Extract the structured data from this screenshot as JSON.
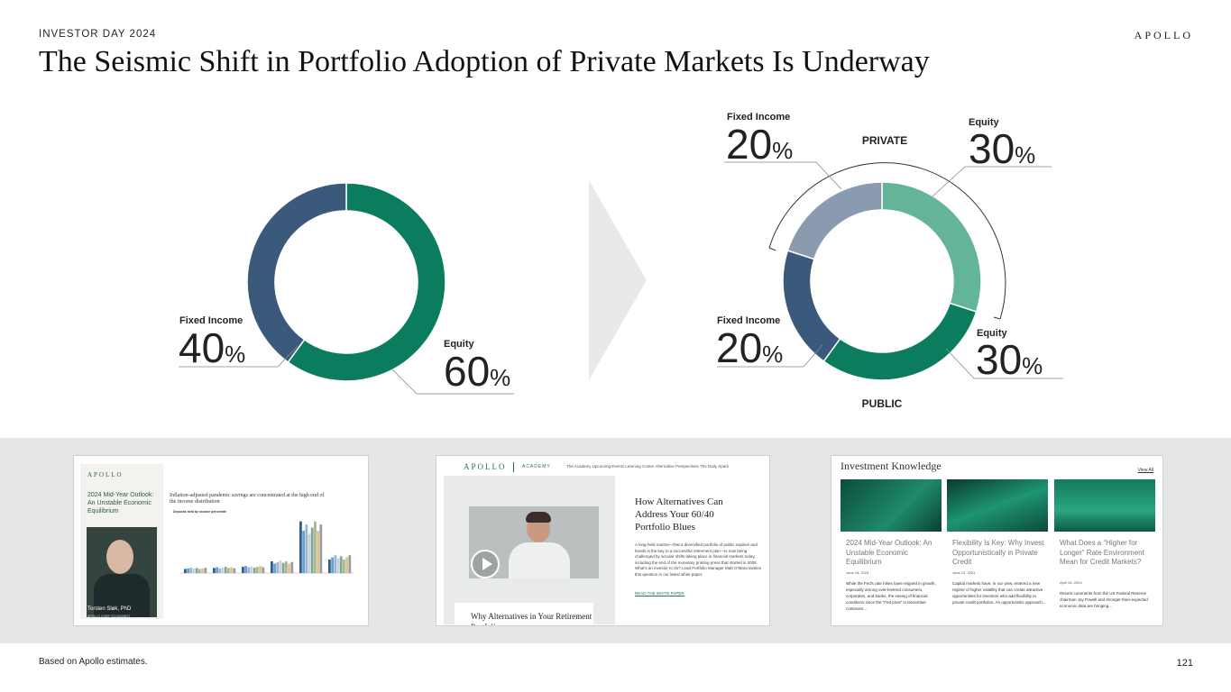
{
  "header": {
    "kicker": "INVESTOR DAY 2024",
    "brand": "APOLLO",
    "title": "The Seismic Shift in Portfolio Adoption of Private Markets Is Underway"
  },
  "colors": {
    "dark_green": "#0b7d5e",
    "navy": "#3b5a7b",
    "light_green": "#64b49a",
    "gray_blue": "#8a9bb0",
    "arrow": "#e9e9e9"
  },
  "chart_data": [
    {
      "type": "pie",
      "donut": true,
      "categories": [
        "Equity",
        "Fixed Income"
      ],
      "values": [
        60,
        40
      ],
      "unit": "%",
      "title": "",
      "labels": [
        {
          "name": "Equity",
          "value": "60",
          "unit": "%"
        },
        {
          "name": "Fixed Income",
          "value": "40",
          "unit": "%"
        }
      ]
    },
    {
      "type": "pie",
      "donut": true,
      "categories": [
        "Private Equity",
        "Public Equity",
        "Public Fixed Income",
        "Private Fixed Income"
      ],
      "values": [
        30,
        30,
        20,
        20
      ],
      "unit": "%",
      "title": "",
      "group_labels": {
        "top": "PRIVATE",
        "bottom": "PUBLIC"
      },
      "labels": [
        {
          "name": "Equity",
          "value": "30",
          "unit": "%"
        },
        {
          "name": "Equity",
          "value": "30",
          "unit": "%"
        },
        {
          "name": "Fixed Income",
          "value": "20",
          "unit": "%"
        },
        {
          "name": "Fixed Income",
          "value": "20",
          "unit": "%"
        }
      ]
    }
  ],
  "thumbnails": {
    "one": {
      "logo": "APOLLO",
      "title": "2024 Mid-Year Outlook: An Unstable Economic Equilibrium",
      "name": "Torsten Sløk, PhD",
      "subtitle": "APOLLO CHIEF ECONOMIST",
      "chart_title": "Inflation-adjusted pandemic savings are concentrated at the high end of the income distribution",
      "chart_subtitle": "Deposits held by income percentile"
    },
    "two": {
      "logo": "APOLLO",
      "academy": "ACADEMY",
      "nav": "The Academy   Upcoming Events   Learning Center   Alternative Perspectives   The Daily Spark",
      "video_caption": "Why Alternatives in Your Retirement Portfolio",
      "headline": "How Alternatives Can Address Your 60/40 Portfolio Blues",
      "body": "A long-held mantra—that a diversified portfolio of public equities and bonds is the key to a successful retirement plan—is now being challenged by secular shifts taking place in financial markets today, including the end of the monetary printing press that started in 2008. What’s an investor to do? Lead Portfolio Manager Matt O’Mara tackles this question in our latest white paper.",
      "link": "READ THE WHITE PAPER"
    },
    "three": {
      "title": "Investment Knowledge",
      "view_all": "View All",
      "cards": [
        {
          "title": "2024 Mid-Year Outlook: An Unstable Economic Equilibrium",
          "date": "June 18, 2024",
          "body": "While the Fed’s rate hikes have reigned in growth, especially among over-levered consumers, corporates, and banks, the easing of financial conditions since the “Fed pivot” in December continues..."
        },
        {
          "title": "Flexibility Is Key: Why Invest Opportunistically in Private Credit",
          "date": "June 12, 2024",
          "body": "Capital markets have, in our view, entered a new regime of higher volatility that can create attractive opportunities for investors who add flexibility to private credit portfolios. An opportunistic approach..."
        },
        {
          "title": "What Does a “Higher for Longer” Rate Environment Mean for Credit Markets?",
          "date": "April 26, 2024",
          "body": "Recent comments from the US Federal Reserve chairman Jay Powell and stronger-than-expected economic data are bringing..."
        }
      ]
    }
  },
  "footer": {
    "note": "Based on Apollo estimates.",
    "page": "121"
  }
}
